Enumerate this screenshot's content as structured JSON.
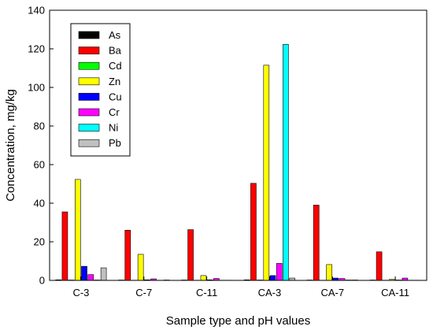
{
  "chart_data": {
    "type": "bar",
    "title": "",
    "xlabel": "Sample type and pH values",
    "ylabel": "Concentration, mg/kg",
    "ylim": [
      0,
      140
    ],
    "yticks": [
      0,
      20,
      40,
      60,
      80,
      100,
      120,
      140
    ],
    "categories": [
      "C-3",
      "C-7",
      "C-11",
      "CA-3",
      "CA-7",
      "CA-11"
    ],
    "legend_position": "top-left",
    "grid": false,
    "series": [
      {
        "name": "As",
        "color": "#000000",
        "values": [
          0.3,
          0.2,
          0.2,
          0.3,
          0.2,
          0.2
        ]
      },
      {
        "name": "Ba",
        "color": "#ff0000",
        "values": [
          35.5,
          26,
          26.3,
          50.3,
          39,
          14.8
        ]
      },
      {
        "name": "Cd",
        "color": "#00ff00",
        "values": [
          0.2,
          0.1,
          0.1,
          0.2,
          0.1,
          0.1
        ]
      },
      {
        "name": "Zn",
        "color": "#ffff00",
        "values": [
          52.3,
          13.5,
          2.5,
          111.5,
          8.2,
          0.5
        ]
      },
      {
        "name": "Cu",
        "color": "#0000ff",
        "values": [
          7.3,
          0.3,
          0.3,
          2.5,
          1.2,
          0.2
        ]
      },
      {
        "name": "Cr",
        "color": "#ff00ff",
        "values": [
          3,
          0.8,
          1.0,
          8.8,
          1.0,
          1.2
        ]
      },
      {
        "name": "Ni",
        "color": "#00ffff",
        "values": [
          0.2,
          0.1,
          0.1,
          122.3,
          0.2,
          0.1
        ]
      },
      {
        "name": "Pb",
        "color": "#c0c0c0",
        "values": [
          6.5,
          0.2,
          0.1,
          1.2,
          0.2,
          0.1
        ]
      }
    ]
  }
}
